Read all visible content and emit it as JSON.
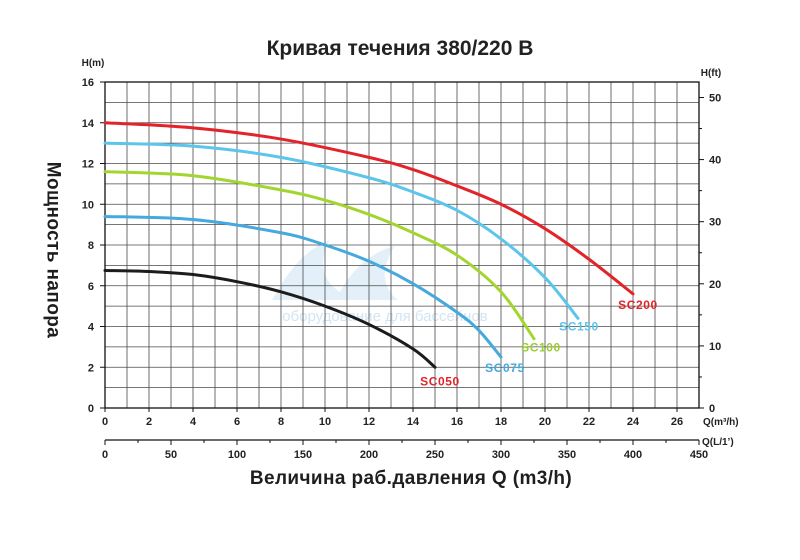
{
  "chart_data": {
    "type": "line",
    "title": "Кривая течения 380/220 В",
    "xlabel": "Величина раб.давления Q (m3/h)",
    "ylabel": "Мощность напора",
    "grid": true,
    "y_axis_left": {
      "label": "H(m)",
      "range": [
        0,
        16
      ],
      "ticks": [
        0,
        2,
        4,
        6,
        8,
        10,
        12,
        14,
        16
      ]
    },
    "y_axis_right": {
      "label": "H(ft)",
      "ticks": [
        0,
        10,
        20,
        30,
        40,
        50
      ]
    },
    "x_axis": {
      "label": "Q(m³/h)",
      "range": [
        0,
        27
      ],
      "ticks": [
        0,
        2,
        4,
        6,
        8,
        10,
        12,
        14,
        16,
        18,
        20,
        22,
        24,
        26
      ]
    },
    "x_axis_secondary": {
      "label": "Q(L/1’)",
      "range": [
        0,
        450
      ],
      "ticks": [
        0,
        50,
        100,
        150,
        200,
        250,
        300,
        350,
        400,
        450
      ]
    },
    "series": [
      {
        "name": "SC200",
        "color": "#e3232a",
        "label_color": "#e3232a",
        "x": [
          0,
          4,
          8,
          12,
          14,
          16,
          18,
          20,
          22,
          24
        ],
        "y": [
          14.0,
          13.75,
          13.2,
          12.3,
          11.7,
          10.9,
          10.0,
          8.8,
          7.3,
          5.6
        ]
      },
      {
        "name": "SC150",
        "color": "#5cc5ec",
        "label_color": "#5cc5ec",
        "x": [
          0,
          4,
          8,
          12,
          14,
          16,
          18,
          20,
          21.5
        ],
        "y": [
          13.0,
          12.85,
          12.3,
          11.3,
          10.6,
          9.7,
          8.3,
          6.4,
          4.4
        ]
      },
      {
        "name": "SC100",
        "color": "#a2d62f",
        "label_color": "#9acd32",
        "x": [
          0,
          4,
          8,
          10,
          12,
          14,
          16,
          18,
          19.5
        ],
        "y": [
          11.6,
          11.4,
          10.7,
          10.2,
          9.5,
          8.6,
          7.5,
          5.7,
          3.4
        ]
      },
      {
        "name": "SC075",
        "color": "#45a8de",
        "label_color": "#45a8de",
        "x": [
          0,
          4,
          8,
          10,
          12,
          14,
          16,
          17,
          18
        ],
        "y": [
          9.4,
          9.25,
          8.6,
          8.0,
          7.2,
          6.1,
          4.7,
          3.8,
          2.5
        ]
      },
      {
        "name": "SC050",
        "color": "#1c1c1c",
        "label_color": "#e3232a",
        "x": [
          0,
          2,
          4,
          6,
          8,
          10,
          12,
          14,
          15
        ],
        "y": [
          6.75,
          6.7,
          6.55,
          6.2,
          5.7,
          5.0,
          4.1,
          2.9,
          2.0
        ]
      }
    ]
  },
  "watermark": {
    "text": "оборудование для бассейнов"
  }
}
